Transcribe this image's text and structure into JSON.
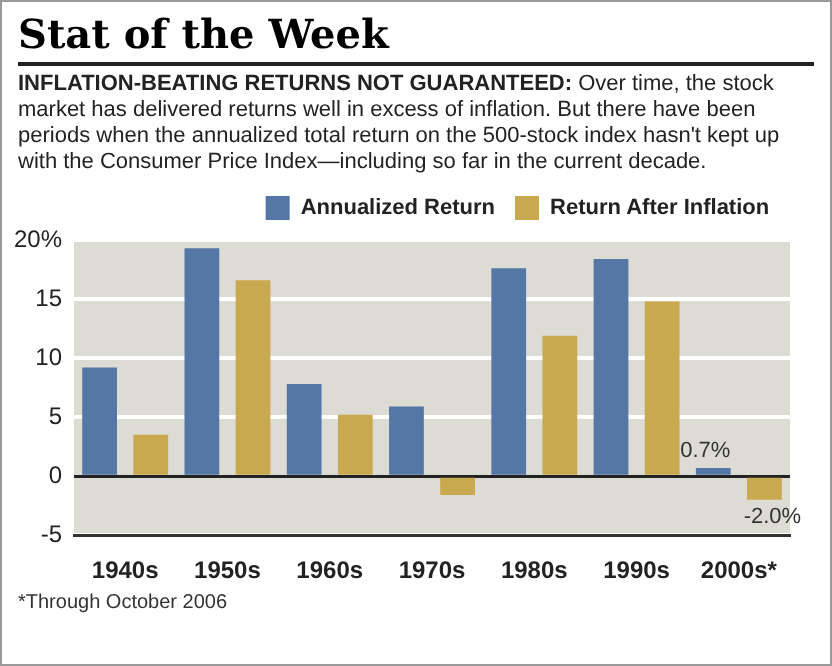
{
  "chart_data": {
    "type": "bar",
    "title": "Stat of the Week",
    "subtitle": "INFLATION-BEATING RETURNS NOT GUARANTEED: Over time, the stock market has delivered returns well in excess of inflation. But there have been periods when the annualized total return on the 500-stock index hasn't kept up with the Consumer Price Index—including so far in the current decade.",
    "categories": [
      "1940s",
      "1950s",
      "1960s",
      "1970s",
      "1980s",
      "1990s",
      "2000s*"
    ],
    "series": [
      {
        "name": "Annualized Return",
        "color": "#5577a6",
        "values": [
          9.2,
          19.3,
          7.8,
          5.9,
          17.6,
          18.4,
          0.7
        ],
        "value_labels": [
          null,
          null,
          null,
          null,
          null,
          null,
          "0.7%"
        ]
      },
      {
        "name": "Return After Inflation",
        "color": "#c9a94f",
        "values": [
          3.5,
          16.6,
          5.2,
          -1.6,
          11.9,
          14.8,
          -2.0
        ],
        "value_labels": [
          null,
          null,
          null,
          null,
          null,
          null,
          "-2.0%"
        ]
      }
    ],
    "ylim": [
      -5,
      20
    ],
    "yticks": [
      -5,
      0,
      5,
      10,
      15,
      {
        "value": 20,
        "label": "20%"
      }
    ],
    "grid": "y",
    "legend": "top",
    "annotations": [
      "*Through October 2006"
    ]
  }
}
